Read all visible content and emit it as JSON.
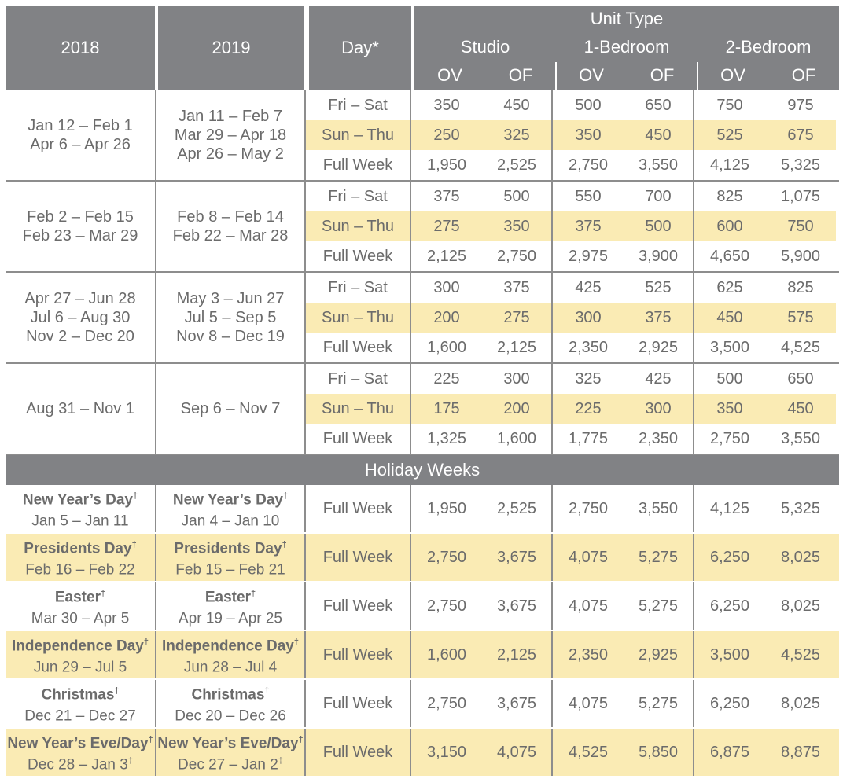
{
  "header": {
    "col_2018": "2018",
    "col_2019": "2019",
    "col_day": "Day*",
    "unit_type": "Unit Type",
    "types": [
      "Studio",
      "1-Bedroom",
      "2-Bedroom"
    ],
    "ov": "OV",
    "of": "OF"
  },
  "seasons": [
    {
      "dates_2018": [
        "Jan 12 – Feb 1",
        "Apr 6 – Apr 26"
      ],
      "dates_2019": [
        "Jan 11 – Feb 7",
        "Mar 29 – Apr 18",
        "Apr 26 – May 2"
      ],
      "rows": [
        {
          "day": "Fri – Sat",
          "values": [
            "350",
            "450",
            "500",
            "650",
            "750",
            "975"
          ]
        },
        {
          "day": "Sun – Thu",
          "values": [
            "250",
            "325",
            "350",
            "450",
            "525",
            "675"
          ]
        },
        {
          "day": "Full Week",
          "values": [
            "1,950",
            "2,525",
            "2,750",
            "3,550",
            "4,125",
            "5,325"
          ]
        }
      ]
    },
    {
      "dates_2018": [
        "Feb 2 – Feb 15",
        "Feb 23 – Mar 29"
      ],
      "dates_2019": [
        "Feb 8 – Feb 14",
        "Feb 22 – Mar 28"
      ],
      "rows": [
        {
          "day": "Fri – Sat",
          "values": [
            "375",
            "500",
            "550",
            "700",
            "825",
            "1,075"
          ]
        },
        {
          "day": "Sun – Thu",
          "values": [
            "275",
            "350",
            "375",
            "500",
            "600",
            "750"
          ]
        },
        {
          "day": "Full Week",
          "values": [
            "2,125",
            "2,750",
            "2,975",
            "3,900",
            "4,650",
            "5,900"
          ]
        }
      ]
    },
    {
      "dates_2018": [
        "Apr 27 – Jun 28",
        "Jul 6 – Aug 30",
        "Nov 2 – Dec 20"
      ],
      "dates_2019": [
        "May 3 – Jun 27",
        "Jul 5 – Sep 5",
        "Nov 8 – Dec 19"
      ],
      "rows": [
        {
          "day": "Fri – Sat",
          "values": [
            "300",
            "375",
            "425",
            "525",
            "625",
            "825"
          ]
        },
        {
          "day": "Sun – Thu",
          "values": [
            "200",
            "275",
            "300",
            "375",
            "450",
            "575"
          ]
        },
        {
          "day": "Full Week",
          "values": [
            "1,600",
            "2,125",
            "2,350",
            "2,925",
            "3,500",
            "4,525"
          ]
        }
      ]
    },
    {
      "dates_2018": [
        "Aug 31 – Nov 1"
      ],
      "dates_2019": [
        "Sep 6 – Nov 7"
      ],
      "rows": [
        {
          "day": "Fri – Sat",
          "values": [
            "225",
            "300",
            "325",
            "425",
            "500",
            "650"
          ]
        },
        {
          "day": "Sun – Thu",
          "values": [
            "175",
            "200",
            "225",
            "300",
            "350",
            "450"
          ]
        },
        {
          "day": "Full Week",
          "values": [
            "1,325",
            "1,600",
            "1,775",
            "2,350",
            "2,750",
            "3,550"
          ]
        }
      ]
    }
  ],
  "holiday_title": "Holiday Weeks",
  "holidays": [
    {
      "name": "New Year’s Day",
      "mark": "†",
      "dates_2018": "Jan 5 – Jan 11",
      "dates_2018_mark": "",
      "dates_2019": "Jan 4 – Jan 10",
      "dates_2019_mark": "",
      "day": "Full Week",
      "values": [
        "1,950",
        "2,525",
        "2,750",
        "3,550",
        "4,125",
        "5,325"
      ],
      "highlight": false
    },
    {
      "name": "Presidents Day",
      "mark": "†",
      "dates_2018": "Feb 16 – Feb 22",
      "dates_2018_mark": "",
      "dates_2019": "Feb 15 – Feb 21",
      "dates_2019_mark": "",
      "day": "Full Week",
      "values": [
        "2,750",
        "3,675",
        "4,075",
        "5,275",
        "6,250",
        "8,025"
      ],
      "highlight": true
    },
    {
      "name": "Easter",
      "mark": "†",
      "dates_2018": "Mar 30 – Apr 5",
      "dates_2018_mark": "",
      "dates_2019": "Apr 19 – Apr 25",
      "dates_2019_mark": "",
      "day": "Full Week",
      "values": [
        "2,750",
        "3,675",
        "4,075",
        "5,275",
        "6,250",
        "8,025"
      ],
      "highlight": false
    },
    {
      "name": "Independence Day",
      "mark": "†",
      "dates_2018": "Jun 29 – Jul 5",
      "dates_2018_mark": "",
      "dates_2019": "Jun 28 – Jul 4",
      "dates_2019_mark": "",
      "day": "Full Week",
      "values": [
        "1,600",
        "2,125",
        "2,350",
        "2,925",
        "3,500",
        "4,525"
      ],
      "highlight": true
    },
    {
      "name": "Christmas",
      "mark": "†",
      "dates_2018": "Dec 21 – Dec 27",
      "dates_2018_mark": "",
      "dates_2019": "Dec 20 – Dec 26",
      "dates_2019_mark": "",
      "day": "Full Week",
      "values": [
        "2,750",
        "3,675",
        "4,075",
        "5,275",
        "6,250",
        "8,025"
      ],
      "highlight": false
    },
    {
      "name": "New Year’s Eve/Day",
      "mark": "†",
      "dates_2018": "Dec 28 – Jan 3",
      "dates_2018_mark": "‡",
      "dates_2019": "Dec 27 – Jan 2",
      "dates_2019_mark": "‡",
      "day": "Full Week",
      "values": [
        "3,150",
        "4,075",
        "4,525",
        "5,850",
        "6,875",
        "8,875"
      ],
      "highlight": true
    }
  ],
  "colors": {
    "header_bg": "#818285",
    "highlight": "#faebb4",
    "text": "#6b6b6b"
  }
}
